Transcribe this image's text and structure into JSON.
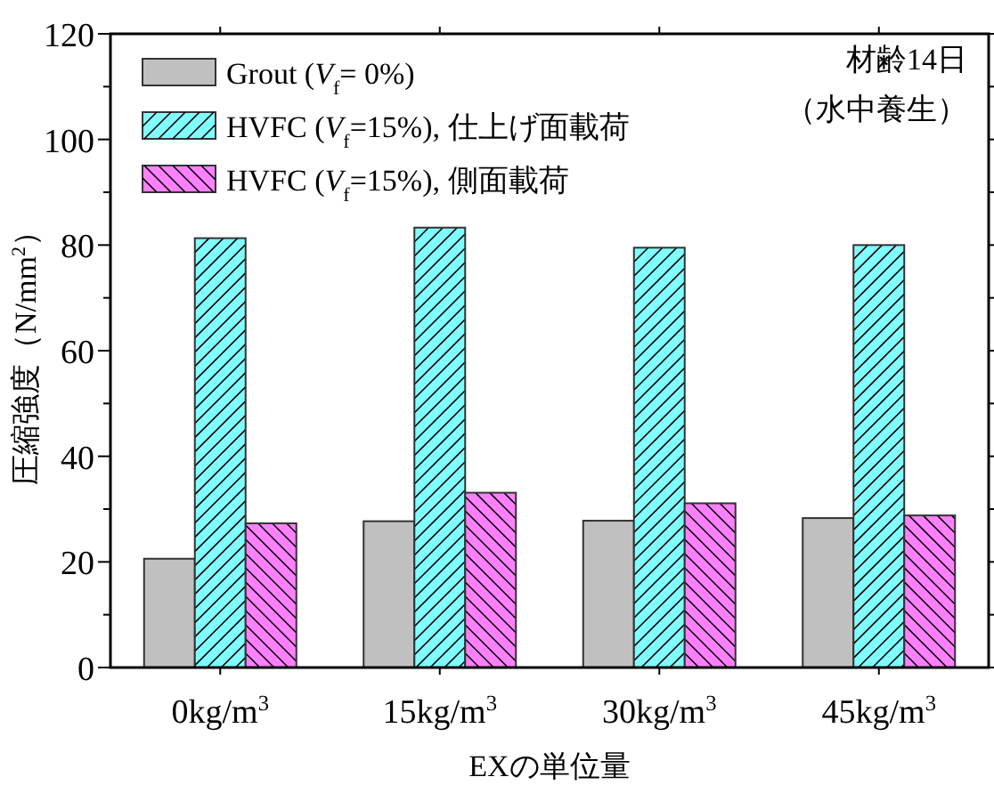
{
  "chart_data": {
    "type": "bar",
    "xlabel": "EXの単位量",
    "ylabel": "圧縮強度（N/mm$^{2}$）",
    "categories": [
      "0kg/m$^{3}$",
      "15kg/m$^{3}$",
      "30kg/m$^{3}$",
      "45kg/m$^{3}$"
    ],
    "series": [
      {
        "name": "Grout (*V*$_{f}$= 0%)",
        "color": "#c0c0c0",
        "values": [
          20.6,
          27.7,
          27.8,
          28.3
        ]
      },
      {
        "name": "HVFC (*V*$_{f}$=15%), 仕上げ面載荷",
        "color": "#80ffff",
        "values": [
          81.3,
          83.3,
          79.5,
          80.0
        ]
      },
      {
        "name": "HVFC (*V*$_{f}$=15%), 側面載荷",
        "color": "#ff80ff",
        "values": [
          27.3,
          33.1,
          31.1,
          28.8
        ]
      }
    ],
    "ylim": [
      0,
      120
    ],
    "yticks": [
      0,
      {
        "value": 10,
        "label": null
      },
      20,
      {
        "value": 30,
        "label": null
      },
      40,
      {
        "value": 50,
        "label": null
      },
      60,
      {
        "value": 70,
        "label": null
      },
      80,
      {
        "value": 90,
        "label": null
      },
      100,
      {
        "value": 110,
        "label": null
      },
      120
    ],
    "annotations": [
      "材齢14日",
      "（水中養生）"
    ],
    "legend": "top left",
    "grid": false
  }
}
